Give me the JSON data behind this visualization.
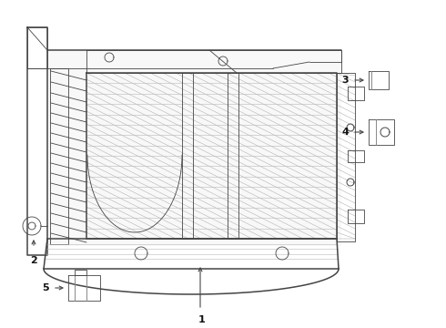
{
  "bg_color": "#ffffff",
  "line_color": "#444444",
  "hatch_color": "#aaaaaa",
  "label_color": "#111111",
  "fig_width": 4.9,
  "fig_height": 3.6,
  "dpi": 100
}
